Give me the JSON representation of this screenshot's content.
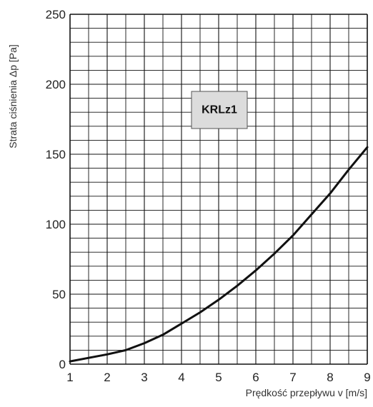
{
  "chart_data": {
    "type": "line",
    "title": "",
    "xlabel": "Prędkość przepływu v [m/s]",
    "ylabel": "Strata ciśnienia Δp [Pa]",
    "xlim": [
      1,
      9
    ],
    "ylim": [
      0,
      250
    ],
    "x_ticks": [
      "1",
      "2",
      "3",
      "4",
      "5",
      "6",
      "7",
      "8",
      "9"
    ],
    "y_ticks": [
      "0",
      "50",
      "100",
      "150",
      "200",
      "250"
    ],
    "grid": true,
    "annotation": "KRLz1",
    "series": [
      {
        "x": [
          1,
          1.5,
          2,
          2.5,
          3,
          3.5,
          4,
          4.5,
          5,
          5.5,
          6,
          6.5,
          7,
          7.5,
          8,
          8.5,
          9
        ],
        "values": [
          2,
          4.5,
          7,
          10,
          15,
          21,
          29,
          37,
          46,
          56,
          67,
          79,
          92,
          107,
          122,
          139,
          155
        ]
      }
    ],
    "colors": {
      "grid": "#111111",
      "line": "#111111",
      "badge_fill": "#dcdcdc"
    }
  }
}
